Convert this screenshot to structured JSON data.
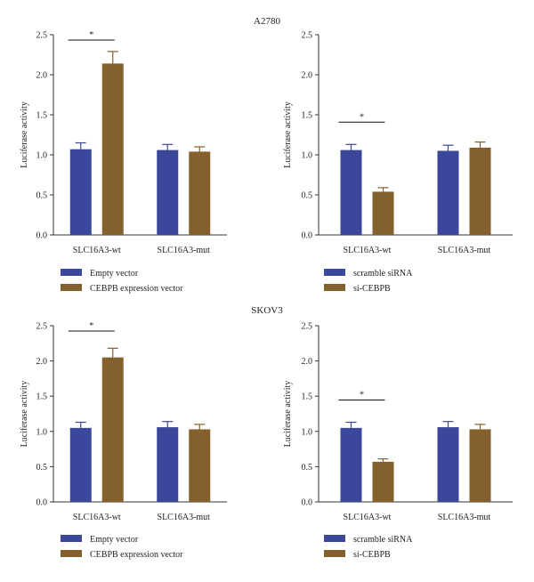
{
  "colors": {
    "blue": "#3a479b",
    "brown": "#84602e",
    "axis": "#333333",
    "text": "#222222"
  },
  "chart_data": [
    {
      "type": "bar",
      "group_title": "A2780",
      "categories": [
        "SLC16A3-wt",
        "SLC16A3-mut"
      ],
      "ylabel": "Luciferase activity",
      "ylim": [
        0,
        2.5
      ],
      "yticks": [
        "0.0",
        "0.5",
        "1.0",
        "1.5",
        "2.0",
        "2.5"
      ],
      "series": [
        {
          "name": "Empty vector",
          "color": "#3a479b",
          "values": [
            1.07,
            1.06
          ],
          "errors": [
            0.08,
            0.07
          ]
        },
        {
          "name": "CEBPB expression vector",
          "color": "#84602e",
          "values": [
            2.14,
            1.04
          ],
          "errors": [
            0.15,
            0.06
          ]
        }
      ],
      "significance": [
        {
          "category_index": 0,
          "label": "*"
        }
      ]
    },
    {
      "type": "bar",
      "categories": [
        "SLC16A3-wt",
        "SLC16A3-mut"
      ],
      "ylabel": "Luciferase activity",
      "ylim": [
        0,
        2.5
      ],
      "yticks": [
        "0.0",
        "0.5",
        "1.0",
        "1.5",
        "2.0",
        "2.5"
      ],
      "series": [
        {
          "name": "scramble siRNA",
          "color": "#3a479b",
          "values": [
            1.06,
            1.05
          ],
          "errors": [
            0.07,
            0.07
          ]
        },
        {
          "name": "si-CEBPB",
          "color": "#84602e",
          "values": [
            0.54,
            1.09
          ],
          "errors": [
            0.05,
            0.07
          ]
        }
      ],
      "significance": [
        {
          "category_index": 0,
          "label": "*"
        }
      ]
    },
    {
      "type": "bar",
      "group_title": "SKOV3",
      "categories": [
        "SLC16A3-wt",
        "SLC16A3-mut"
      ],
      "ylabel": "Luciferase activity",
      "ylim": [
        0,
        2.5
      ],
      "yticks": [
        "0.0",
        "0.5",
        "1.0",
        "1.5",
        "2.0",
        "2.5"
      ],
      "series": [
        {
          "name": "Empty vector",
          "color": "#3a479b",
          "values": [
            1.05,
            1.06
          ],
          "errors": [
            0.08,
            0.08
          ]
        },
        {
          "name": "CEBPB expression vector",
          "color": "#84602e",
          "values": [
            2.05,
            1.03
          ],
          "errors": [
            0.13,
            0.07
          ]
        }
      ],
      "significance": [
        {
          "category_index": 0,
          "label": "*"
        }
      ]
    },
    {
      "type": "bar",
      "categories": [
        "SLC16A3-wt",
        "SLC16A3-mut"
      ],
      "ylabel": "Luciferase activity",
      "ylim": [
        0,
        2.5
      ],
      "yticks": [
        "0.0",
        "0.5",
        "1.0",
        "1.5",
        "2.0",
        "2.5"
      ],
      "series": [
        {
          "name": "scramble siRNA",
          "color": "#3a479b",
          "values": [
            1.05,
            1.06
          ],
          "errors": [
            0.08,
            0.08
          ]
        },
        {
          "name": "si-CEBPB",
          "color": "#84602e",
          "values": [
            0.57,
            1.03
          ],
          "errors": [
            0.04,
            0.07
          ]
        }
      ],
      "significance": [
        {
          "category_index": 0,
          "label": "*"
        }
      ]
    }
  ]
}
